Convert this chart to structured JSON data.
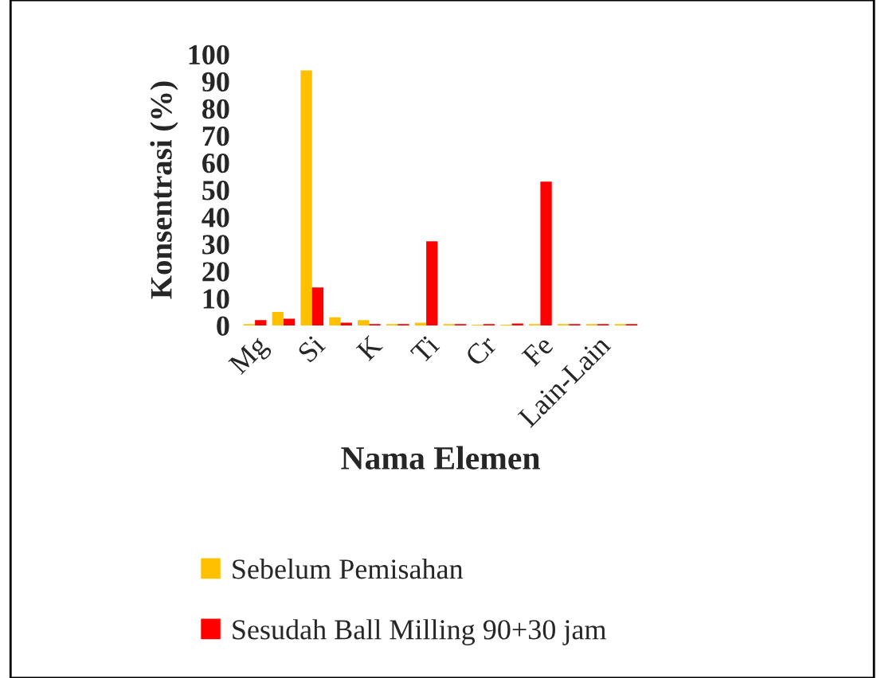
{
  "chart_data": {
    "type": "bar",
    "xlabel": "Nama Elemen",
    "ylabel": "Konsentrasi (%)",
    "categories": [
      "Mg",
      null,
      "Si",
      null,
      "K",
      null,
      "Ti",
      null,
      "Cr",
      null,
      "Fe",
      null,
      "Lain-Lain",
      null
    ],
    "series": [
      {
        "name": "Sebelum Pemisahan",
        "color": "#ffc000",
        "values": [
          0.5,
          5,
          94,
          3,
          2,
          0.5,
          1,
          0.5,
          0.3,
          0.3,
          0.5,
          0.5,
          0.5,
          0.5
        ]
      },
      {
        "name": "Sesudah Ball Milling 90+30 jam",
        "color": "#ff0000",
        "values": [
          2,
          2.5,
          14,
          1,
          0.5,
          0.5,
          31,
          0.5,
          0.5,
          0.7,
          53,
          0.5,
          0.5,
          0.5
        ]
      }
    ],
    "ylim": [
      0,
      100
    ],
    "yticks": [
      0,
      10,
      20,
      30,
      40,
      50,
      60,
      70,
      80,
      90,
      100
    ],
    "grid": false,
    "legend": "bottom"
  }
}
